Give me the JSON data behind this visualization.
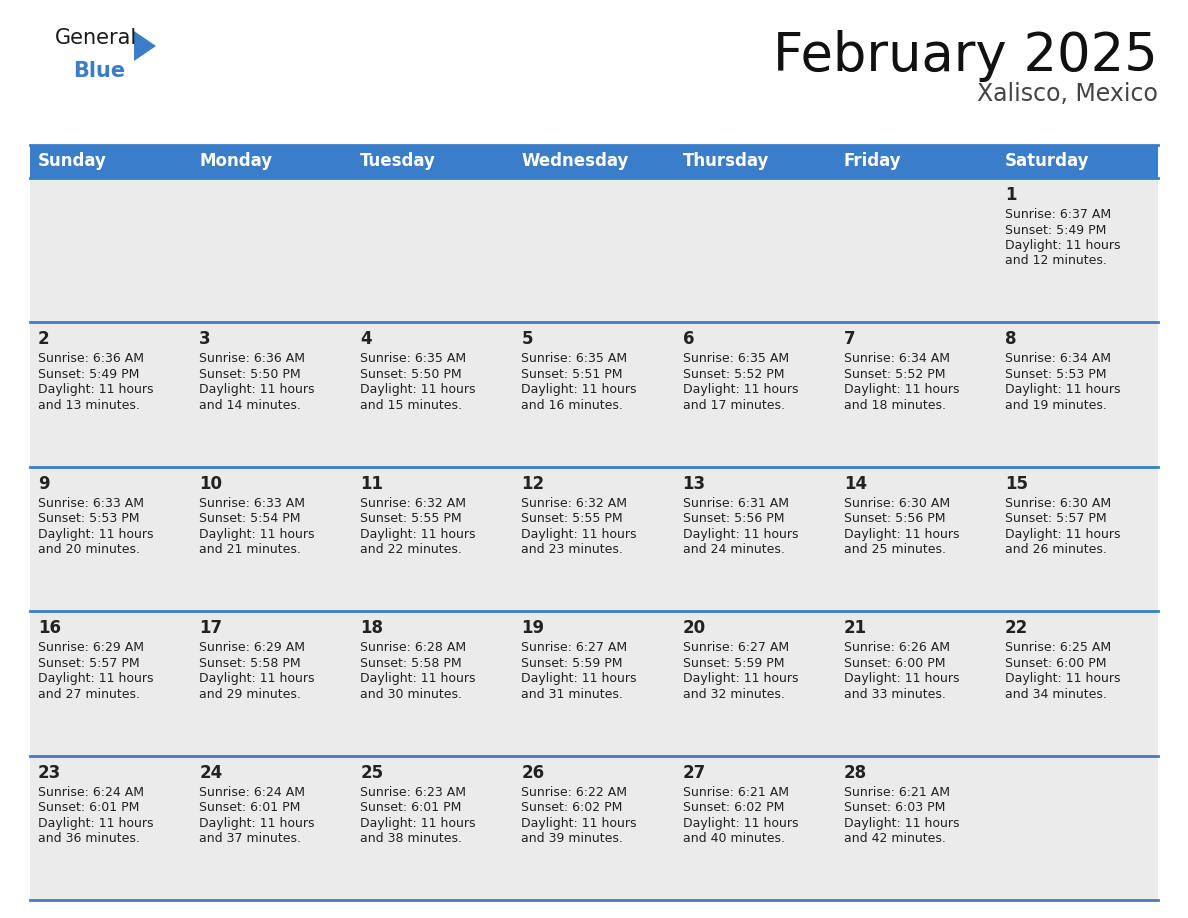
{
  "title": "February 2025",
  "subtitle": "Xalisco, Mexico",
  "header_bg": "#3A7DC9",
  "header_text_color": "#FFFFFF",
  "cell_bg": "#EBEBEB",
  "row_border_color": "#3A7DC9",
  "text_color": "#222222",
  "day_headers": [
    "Sunday",
    "Monday",
    "Tuesday",
    "Wednesday",
    "Thursday",
    "Friday",
    "Saturday"
  ],
  "days": [
    {
      "day": 1,
      "col": 6,
      "row": 0,
      "sunrise": "6:37 AM",
      "sunset": "5:49 PM",
      "daylight": "11 hours and 12 minutes."
    },
    {
      "day": 2,
      "col": 0,
      "row": 1,
      "sunrise": "6:36 AM",
      "sunset": "5:49 PM",
      "daylight": "11 hours and 13 minutes."
    },
    {
      "day": 3,
      "col": 1,
      "row": 1,
      "sunrise": "6:36 AM",
      "sunset": "5:50 PM",
      "daylight": "11 hours and 14 minutes."
    },
    {
      "day": 4,
      "col": 2,
      "row": 1,
      "sunrise": "6:35 AM",
      "sunset": "5:50 PM",
      "daylight": "11 hours and 15 minutes."
    },
    {
      "day": 5,
      "col": 3,
      "row": 1,
      "sunrise": "6:35 AM",
      "sunset": "5:51 PM",
      "daylight": "11 hours and 16 minutes."
    },
    {
      "day": 6,
      "col": 4,
      "row": 1,
      "sunrise": "6:35 AM",
      "sunset": "5:52 PM",
      "daylight": "11 hours and 17 minutes."
    },
    {
      "day": 7,
      "col": 5,
      "row": 1,
      "sunrise": "6:34 AM",
      "sunset": "5:52 PM",
      "daylight": "11 hours and 18 minutes."
    },
    {
      "day": 8,
      "col": 6,
      "row": 1,
      "sunrise": "6:34 AM",
      "sunset": "5:53 PM",
      "daylight": "11 hours and 19 minutes."
    },
    {
      "day": 9,
      "col": 0,
      "row": 2,
      "sunrise": "6:33 AM",
      "sunset": "5:53 PM",
      "daylight": "11 hours and 20 minutes."
    },
    {
      "day": 10,
      "col": 1,
      "row": 2,
      "sunrise": "6:33 AM",
      "sunset": "5:54 PM",
      "daylight": "11 hours and 21 minutes."
    },
    {
      "day": 11,
      "col": 2,
      "row": 2,
      "sunrise": "6:32 AM",
      "sunset": "5:55 PM",
      "daylight": "11 hours and 22 minutes."
    },
    {
      "day": 12,
      "col": 3,
      "row": 2,
      "sunrise": "6:32 AM",
      "sunset": "5:55 PM",
      "daylight": "11 hours and 23 minutes."
    },
    {
      "day": 13,
      "col": 4,
      "row": 2,
      "sunrise": "6:31 AM",
      "sunset": "5:56 PM",
      "daylight": "11 hours and 24 minutes."
    },
    {
      "day": 14,
      "col": 5,
      "row": 2,
      "sunrise": "6:30 AM",
      "sunset": "5:56 PM",
      "daylight": "11 hours and 25 minutes."
    },
    {
      "day": 15,
      "col": 6,
      "row": 2,
      "sunrise": "6:30 AM",
      "sunset": "5:57 PM",
      "daylight": "11 hours and 26 minutes."
    },
    {
      "day": 16,
      "col": 0,
      "row": 3,
      "sunrise": "6:29 AM",
      "sunset": "5:57 PM",
      "daylight": "11 hours and 27 minutes."
    },
    {
      "day": 17,
      "col": 1,
      "row": 3,
      "sunrise": "6:29 AM",
      "sunset": "5:58 PM",
      "daylight": "11 hours and 29 minutes."
    },
    {
      "day": 18,
      "col": 2,
      "row": 3,
      "sunrise": "6:28 AM",
      "sunset": "5:58 PM",
      "daylight": "11 hours and 30 minutes."
    },
    {
      "day": 19,
      "col": 3,
      "row": 3,
      "sunrise": "6:27 AM",
      "sunset": "5:59 PM",
      "daylight": "11 hours and 31 minutes."
    },
    {
      "day": 20,
      "col": 4,
      "row": 3,
      "sunrise": "6:27 AM",
      "sunset": "5:59 PM",
      "daylight": "11 hours and 32 minutes."
    },
    {
      "day": 21,
      "col": 5,
      "row": 3,
      "sunrise": "6:26 AM",
      "sunset": "6:00 PM",
      "daylight": "11 hours and 33 minutes."
    },
    {
      "day": 22,
      "col": 6,
      "row": 3,
      "sunrise": "6:25 AM",
      "sunset": "6:00 PM",
      "daylight": "11 hours and 34 minutes."
    },
    {
      "day": 23,
      "col": 0,
      "row": 4,
      "sunrise": "6:24 AM",
      "sunset": "6:01 PM",
      "daylight": "11 hours and 36 minutes."
    },
    {
      "day": 24,
      "col": 1,
      "row": 4,
      "sunrise": "6:24 AM",
      "sunset": "6:01 PM",
      "daylight": "11 hours and 37 minutes."
    },
    {
      "day": 25,
      "col": 2,
      "row": 4,
      "sunrise": "6:23 AM",
      "sunset": "6:01 PM",
      "daylight": "11 hours and 38 minutes."
    },
    {
      "day": 26,
      "col": 3,
      "row": 4,
      "sunrise": "6:22 AM",
      "sunset": "6:02 PM",
      "daylight": "11 hours and 39 minutes."
    },
    {
      "day": 27,
      "col": 4,
      "row": 4,
      "sunrise": "6:21 AM",
      "sunset": "6:02 PM",
      "daylight": "11 hours and 40 minutes."
    },
    {
      "day": 28,
      "col": 5,
      "row": 4,
      "sunrise": "6:21 AM",
      "sunset": "6:03 PM",
      "daylight": "11 hours and 42 minutes."
    }
  ],
  "num_rows": 5,
  "num_cols": 7,
  "logo_general_color": "#1a1a1a",
  "logo_blue_color": "#3A7DC9",
  "logo_triangle_color": "#3A7DC9",
  "title_fontsize": 38,
  "subtitle_fontsize": 17,
  "header_fontsize": 12,
  "day_num_fontsize": 12,
  "cell_text_fontsize": 9
}
